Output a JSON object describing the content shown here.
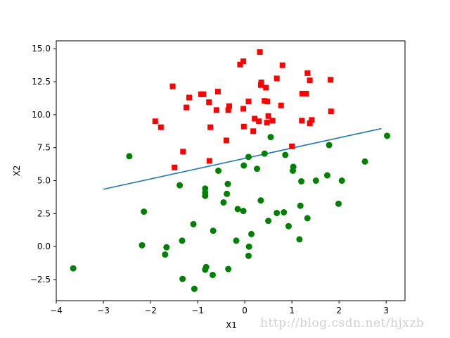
{
  "chart_data": {
    "type": "scatter",
    "xlabel": "X1",
    "ylabel": "X2",
    "xlim": [
      -4,
      3.4
    ],
    "ylim": [
      -4.1,
      15.6
    ],
    "xticks": [
      -4,
      -3,
      -2,
      -1,
      0,
      1,
      2,
      3
    ],
    "yticks": [
      -2.5,
      0.0,
      2.5,
      5.0,
      7.5,
      10.0,
      12.5,
      15.0
    ],
    "ytick_labels": [
      "−2.5",
      "0.0",
      "2.5",
      "5.0",
      "7.5",
      "10.0",
      "12.5",
      "15.0"
    ],
    "xtick_labels": [
      "−4",
      "−3",
      "−2",
      "−1",
      "0",
      "1",
      "2",
      "3"
    ],
    "grid": false,
    "series": [
      {
        "marker": "square",
        "color": "#ff0000",
        "points": [
          [
            -1.53,
            12.15
          ],
          [
            -1.18,
            11.3
          ],
          [
            -0.93,
            11.55
          ],
          [
            -0.88,
            11.55
          ],
          [
            -0.76,
            10.95
          ],
          [
            -0.57,
            11.75
          ],
          [
            -1.24,
            10.55
          ],
          [
            -1.9,
            9.5
          ],
          [
            -1.78,
            9.05
          ],
          [
            -0.73,
            9.05
          ],
          [
            -0.6,
            10.35
          ],
          [
            -0.33,
            10.65
          ],
          [
            -0.35,
            10.35
          ],
          [
            -0.1,
            13.8
          ],
          [
            -0.03,
            14.05
          ],
          [
            0.32,
            14.75
          ],
          [
            0.35,
            12.45
          ],
          [
            0.34,
            12.25
          ],
          [
            0.45,
            12.05
          ],
          [
            0.42,
            11.05
          ],
          [
            0.08,
            11.0
          ],
          [
            0.48,
            11.0
          ],
          [
            -0.03,
            10.45
          ],
          [
            0.21,
            9.7
          ],
          [
            0.3,
            9.5
          ],
          [
            0.5,
            9.9
          ],
          [
            0.47,
            9.4
          ],
          [
            0.59,
            9.55
          ],
          [
            -0.02,
            9.1
          ],
          [
            0.18,
            8.75
          ],
          [
            0.68,
            12.75
          ],
          [
            0.8,
            13.75
          ],
          [
            0.77,
            10.7
          ],
          [
            -0.39,
            8.05
          ],
          [
            -1.31,
            7.2
          ],
          [
            -1.49,
            6.0
          ],
          [
            -0.75,
            6.5
          ],
          [
            1.0,
            7.6
          ],
          [
            1.21,
            9.55
          ],
          [
            1.22,
            11.6
          ],
          [
            1.3,
            11.6
          ],
          [
            1.33,
            13.15
          ],
          [
            1.38,
            12.6
          ],
          [
            1.38,
            9.35
          ],
          [
            1.42,
            9.6
          ],
          [
            1.82,
            12.65
          ],
          [
            1.83,
            10.25
          ]
        ]
      },
      {
        "marker": "circle",
        "color": "#008000",
        "points": [
          [
            -3.64,
            -1.65
          ],
          [
            -2.45,
            6.85
          ],
          [
            -2.14,
            2.65
          ],
          [
            -2.18,
            0.1
          ],
          [
            -1.66,
            -0.05
          ],
          [
            -1.69,
            -0.6
          ],
          [
            -1.33,
            0.45
          ],
          [
            -1.38,
            4.65
          ],
          [
            -1.32,
            -2.45
          ],
          [
            -1.07,
            -3.2
          ],
          [
            -1.09,
            1.7
          ],
          [
            -0.84,
            4.4
          ],
          [
            -0.84,
            4.1
          ],
          [
            -0.84,
            3.85
          ],
          [
            -0.82,
            -1.55
          ],
          [
            -0.84,
            -1.75
          ],
          [
            -0.68,
            -2.15
          ],
          [
            -0.67,
            1.2
          ],
          [
            -0.56,
            5.75
          ],
          [
            -0.45,
            3.35
          ],
          [
            -0.36,
            4.75
          ],
          [
            -0.38,
            4.0
          ],
          [
            -0.35,
            -1.7
          ],
          [
            -0.18,
            0.45
          ],
          [
            -0.15,
            2.85
          ],
          [
            -0.03,
            2.7
          ],
          [
            -0.02,
            6.15
          ],
          [
            0.08,
            6.8
          ],
          [
            0.09,
            0.0
          ],
          [
            0.08,
            -0.7
          ],
          [
            0.14,
            0.95
          ],
          [
            0.26,
            5.9
          ],
          [
            0.34,
            3.5
          ],
          [
            0.42,
            7.05
          ],
          [
            0.5,
            1.95
          ],
          [
            0.55,
            8.3
          ],
          [
            0.68,
            2.55
          ],
          [
            0.83,
            2.6
          ],
          [
            0.86,
            6.95
          ],
          [
            0.93,
            1.55
          ],
          [
            1.03,
            6.05
          ],
          [
            1.02,
            5.75
          ],
          [
            1.16,
            0.55
          ],
          [
            1.18,
            3.1
          ],
          [
            1.2,
            4.95
          ],
          [
            1.33,
            2.15
          ],
          [
            1.51,
            5.0
          ],
          [
            1.75,
            5.4
          ],
          [
            1.79,
            7.7
          ],
          [
            1.99,
            3.25
          ],
          [
            2.06,
            5.0
          ],
          [
            2.55,
            6.45
          ],
          [
            3.02,
            8.4
          ]
        ]
      }
    ],
    "line": {
      "color": "#1f77b4",
      "x": [
        -3.0,
        2.9
      ],
      "y": [
        4.35,
        8.95
      ]
    }
  },
  "watermark": "http://blog.csdn.net/hjxzb"
}
